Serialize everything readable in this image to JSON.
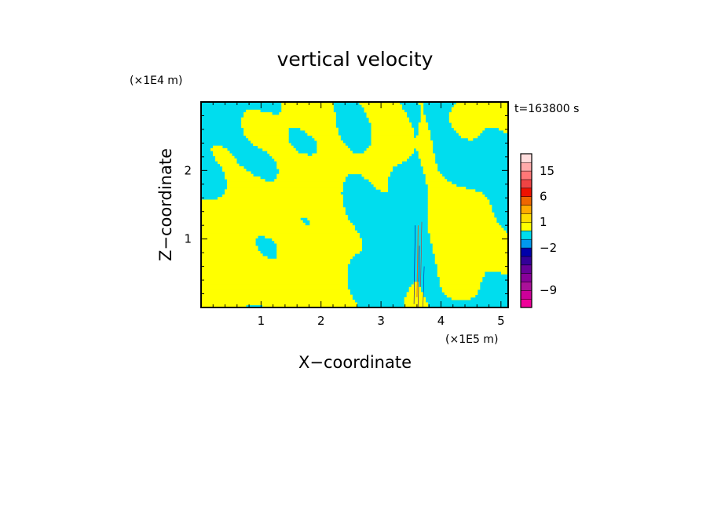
{
  "chart_data": {
    "type": "heatmap",
    "title": "vertical velocity",
    "xlabel": "X−coordinate",
    "ylabel": "Z−coordinate",
    "x_unit": "(×1E5 m)",
    "y_unit": "(×1E4 m)",
    "time_label": "t=163800 s",
    "xlim": [
      0,
      5.12
    ],
    "ylim": [
      0,
      3.0
    ],
    "x_ticks": [
      {
        "value": 1,
        "label": "1"
      },
      {
        "value": 2,
        "label": "2"
      },
      {
        "value": 3,
        "label": "3"
      },
      {
        "value": 4,
        "label": "4"
      },
      {
        "value": 5,
        "label": "5"
      }
    ],
    "y_ticks": [
      {
        "value": 1,
        "label": "1"
      },
      {
        "value": 2,
        "label": "2"
      }
    ],
    "colorbar": {
      "levels": [
        -12,
        -10.5,
        -9,
        -7.5,
        -6,
        -4.5,
        -3,
        -2,
        -1,
        0,
        1,
        2,
        3.5,
        6,
        8.5,
        11.5,
        15,
        18.5,
        25
      ],
      "colors": [
        "#ee0099",
        "#cc0099",
        "#aa1199",
        "#880099",
        "#660099",
        "#330099",
        "#0000aa",
        "#0099ee",
        "#00ddee",
        "#ffff00",
        "#ffdd00",
        "#ffaa00",
        "#ee6600",
        "#ee1100",
        "#ee4444",
        "#ff7777",
        "#ffaaaa",
        "#ffdddd"
      ],
      "labels": [
        {
          "value": 15,
          "label": "15"
        },
        {
          "value": 6,
          "label": "6"
        },
        {
          "value": 1,
          "label": "1"
        },
        {
          "value": -2,
          "label": "−2"
        },
        {
          "value": -9,
          "label": "−9"
        }
      ]
    },
    "field_colors": {
      "positive": "#ffff00",
      "negative": "#00ddee"
    }
  }
}
